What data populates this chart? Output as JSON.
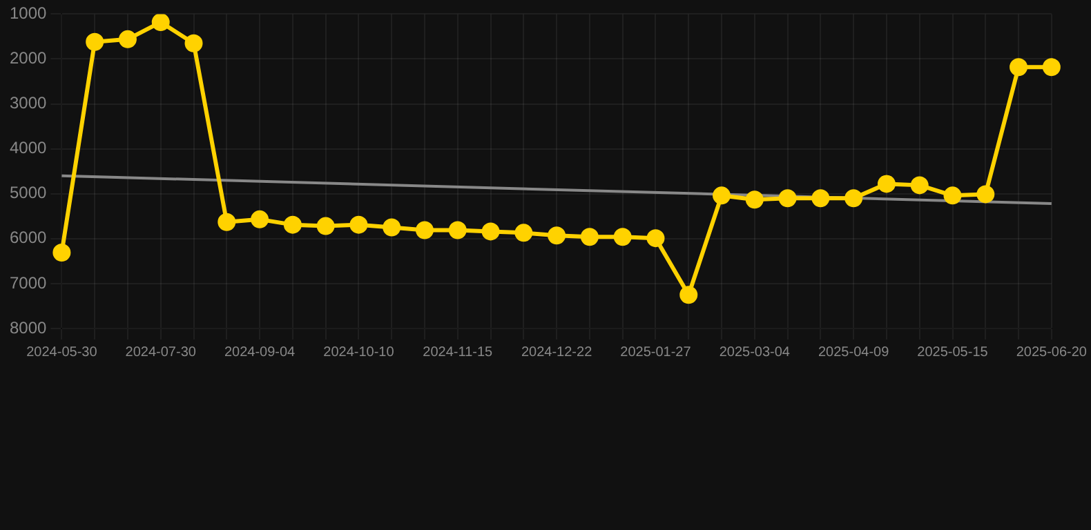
{
  "chart_data": {
    "type": "line",
    "categories": [
      "2024-05-30",
      null,
      null,
      "2024-07-30",
      null,
      null,
      "2024-09-04",
      null,
      null,
      "2024-10-10",
      null,
      null,
      "2024-11-15",
      null,
      null,
      "2024-12-22",
      null,
      null,
      "2025-01-27",
      null,
      null,
      "2025-03-04",
      null,
      null,
      "2025-04-09",
      null,
      null,
      "2025-05-15",
      null,
      null,
      "2025-06-20"
    ],
    "series": [
      {
        "color": "#ffd200",
        "marker": "circle",
        "values": [
          6310,
          1620,
          1560,
          1180,
          1650,
          5630,
          5570,
          5690,
          5720,
          5690,
          5750,
          5810,
          5810,
          5840,
          5870,
          5930,
          5960,
          5960,
          5990,
          7250,
          5040,
          5130,
          5100,
          5100,
          5100,
          4780,
          4810,
          5040,
          5010,
          2180,
          2180
        ]
      },
      {
        "color": "#888888",
        "marker": "none",
        "values": [
          4600,
          null,
          null,
          null,
          null,
          null,
          null,
          null,
          null,
          null,
          null,
          null,
          null,
          null,
          null,
          null,
          null,
          null,
          null,
          null,
          null,
          null,
          null,
          null,
          null,
          null,
          null,
          null,
          null,
          null,
          5220
        ]
      }
    ],
    "ylim": [
      8000,
      1000
    ],
    "yticks": [
      1000,
      2000,
      3000,
      4000,
      5000,
      6000,
      7000,
      8000
    ],
    "grid": true,
    "legend": false
  }
}
